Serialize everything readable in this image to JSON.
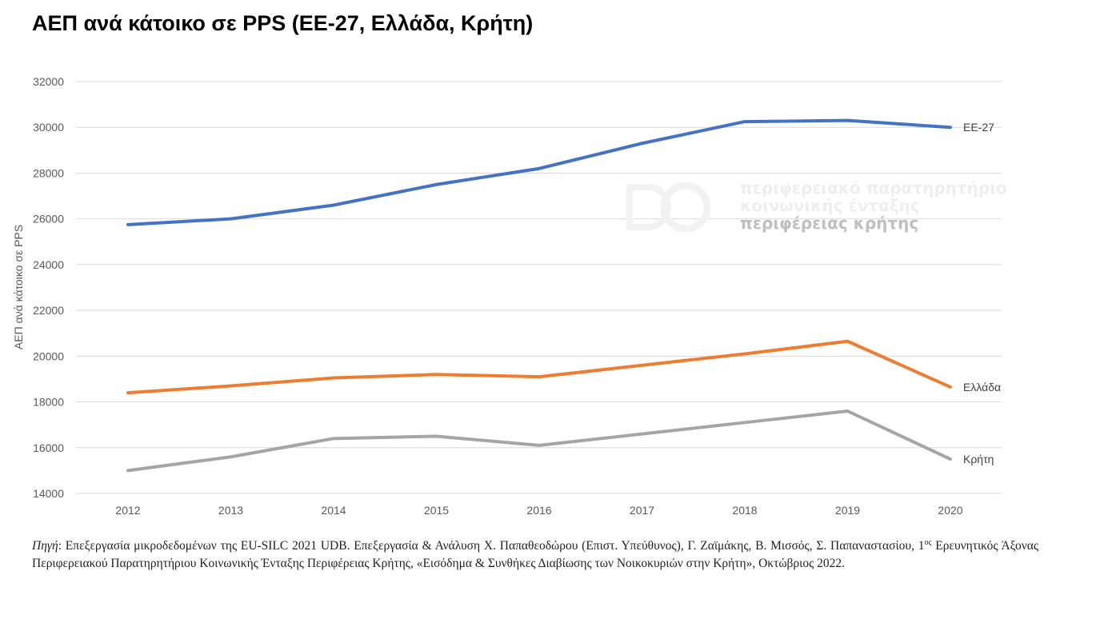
{
  "title": "ΑΕΠ ανά κάτοικο σε PPS (ΕΕ-27, Ελλάδα, Κρήτη)",
  "chart_data": {
    "type": "line",
    "title": "ΑΕΠ ανά κάτοικο σε PPS (ΕΕ-27, Ελλάδα, Κρήτη)",
    "xlabel": "",
    "ylabel": "ΑΕΠ ανά κάτοικο σε PPS",
    "categories": [
      "2012",
      "2013",
      "2014",
      "2015",
      "2016",
      "2017",
      "2018",
      "2019",
      "2020"
    ],
    "ylim": [
      14000,
      32000
    ],
    "yticks": [
      14000,
      16000,
      18000,
      20000,
      22000,
      24000,
      26000,
      28000,
      30000,
      32000
    ],
    "grid": true,
    "legend": "line-end labels",
    "series": [
      {
        "name": "ΕΕ-27",
        "color": "#4472C4",
        "values": [
          25750,
          26000,
          26600,
          27500,
          28200,
          29300,
          30250,
          30300,
          30000
        ]
      },
      {
        "name": "Ελλάδα",
        "color": "#ED7D31",
        "values": [
          18400,
          18700,
          19050,
          19200,
          19100,
          19600,
          20100,
          20650,
          18650
        ]
      },
      {
        "name": "Κρήτη",
        "color": "#A5A5A5",
        "values": [
          15000,
          15600,
          16400,
          16500,
          16100,
          16600,
          17100,
          17600,
          15500
        ]
      }
    ]
  },
  "watermark": {
    "line1": "περιφερειακό παρατηρητήριο",
    "line2": "κοινωνικής ένταξης",
    "line3": "περιφέρειας κρήτης"
  },
  "source": {
    "label": "Πηγή",
    "text1": ": Επεξεργασία μικροδεδομένων της EU-SILC 2021 UDB. Επεξεργασία & Ανάλυση Χ. Παπαθεοδώρου (Επιστ. Υπεύθυνος), Γ. Ζαϊμάκης, Β. Μισσός, Σ. Παπαναστασίου, 1",
    "sup": "ος",
    "text2": " Ερευνητικός Άξονας Περιφερειακού Παρατηρητήριου Κοινωνικής Ένταξης Περιφέρειας Κρήτης, «Εισόδημα & Συνθήκες Διαβίωσης των Νοικοκυριών στην Κρήτη», Οκτώβριος 2022."
  }
}
